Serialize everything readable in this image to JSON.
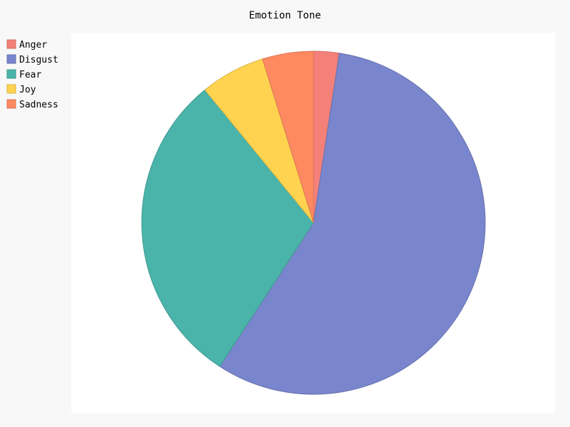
{
  "chart_data": {
    "type": "pie",
    "title": "Emotion Tone",
    "legend_position": "top-left",
    "series": [
      {
        "name": "Anger",
        "value": 2.4,
        "color": "#F3817A"
      },
      {
        "name": "Disgust",
        "value": 56.8,
        "color": "#7985CC"
      },
      {
        "name": "Fear",
        "value": 29.9,
        "color": "#4AB4AA"
      },
      {
        "name": "Joy",
        "value": 6.1,
        "color": "#FFD350"
      },
      {
        "name": "Sadness",
        "value": 4.8,
        "color": "#FF8A62"
      }
    ]
  }
}
